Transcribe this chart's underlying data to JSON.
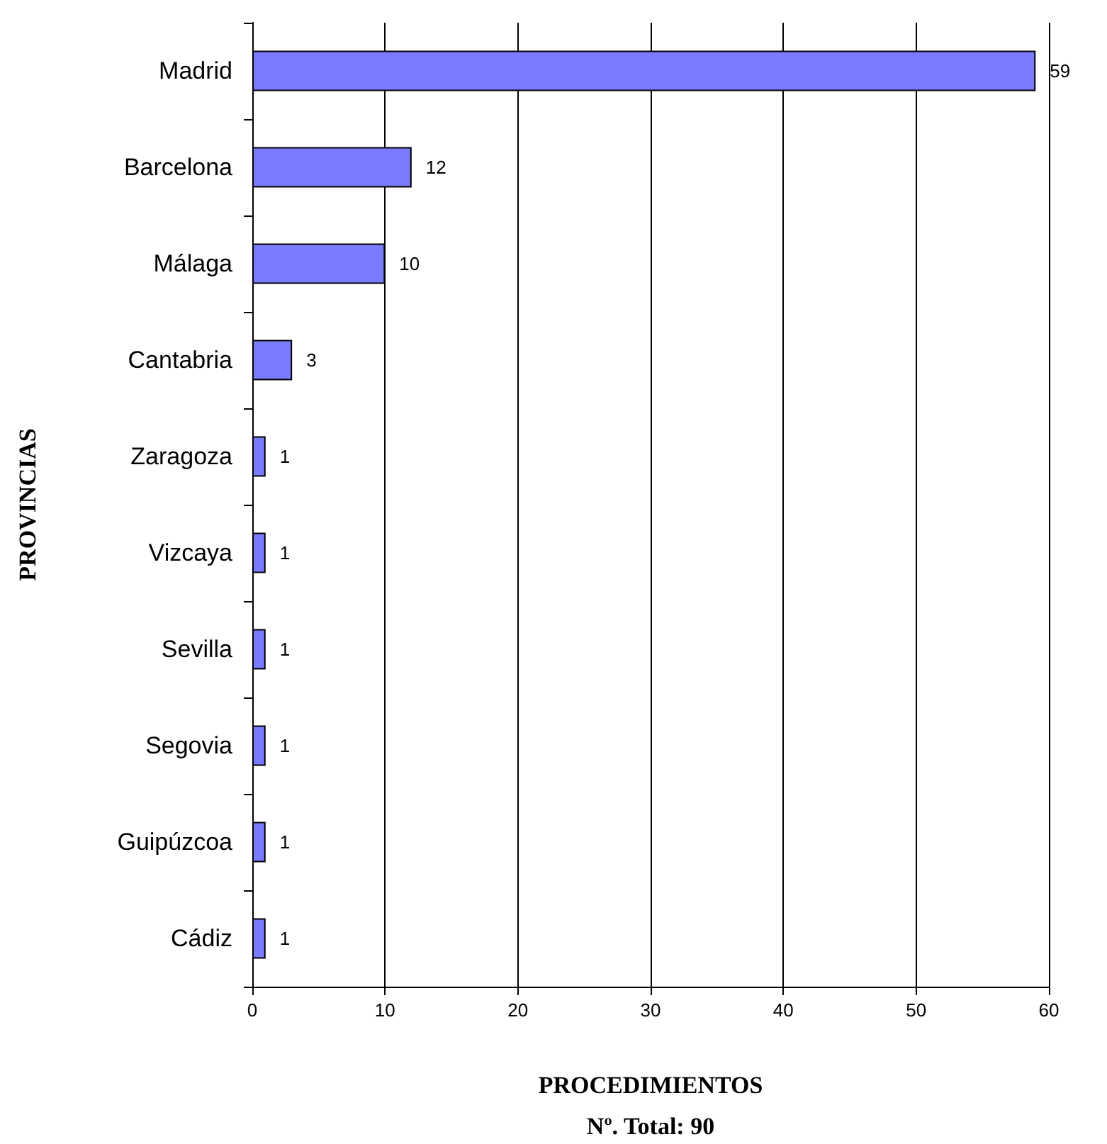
{
  "chart_data": {
    "type": "bar",
    "orientation": "horizontal",
    "categories": [
      "Madrid",
      "Barcelona",
      "Málaga",
      "Cantabria",
      "Zaragoza",
      "Vizcaya",
      "Sevilla",
      "Segovia",
      "Guipúzcoa",
      "Cádiz"
    ],
    "values": [
      59,
      12,
      10,
      3,
      1,
      1,
      1,
      1,
      1,
      1
    ],
    "color": "#7b7bff",
    "xlim": [
      0,
      60
    ],
    "xticks": [
      0,
      10,
      20,
      30,
      40,
      50,
      60
    ],
    "xlabel": "PROCEDIMIENTOS",
    "ylabel": "PROVINCIAS",
    "annotations": [
      "Nº. Total: 90"
    ],
    "data_labels": true,
    "grid": "x"
  }
}
